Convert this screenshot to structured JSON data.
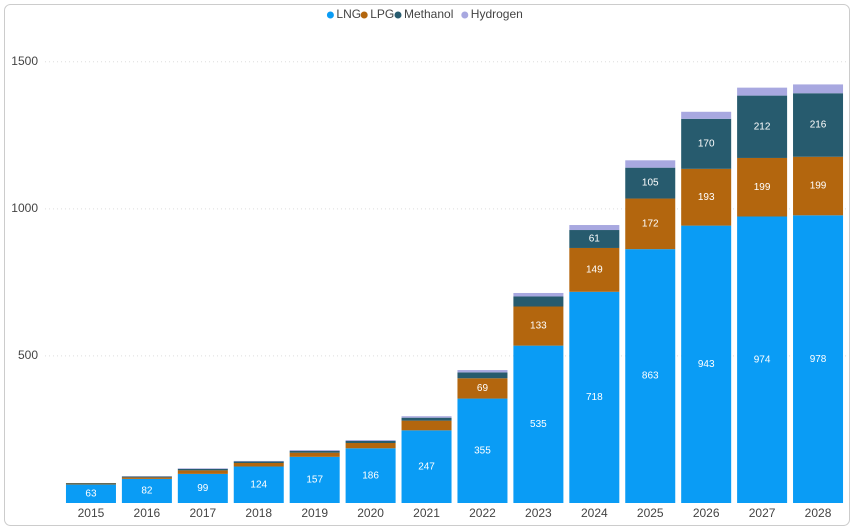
{
  "chart_data": {
    "type": "stacked-bar",
    "categories": [
      "2015",
      "2016",
      "2017",
      "2018",
      "2019",
      "2020",
      "2021",
      "2022",
      "2023",
      "2024",
      "2025",
      "2026",
      "2027",
      "2028"
    ],
    "series": [
      {
        "name": "LNG",
        "color": "#0a9cf5",
        "values": [
          63,
          82,
          99,
          124,
          157,
          186,
          247,
          355,
          535,
          718,
          863,
          943,
          974,
          978
        ]
      },
      {
        "name": "LPG",
        "color": "#b3660e",
        "values": [
          3,
          5,
          12,
          12,
          14,
          18,
          33,
          69,
          133,
          149,
          172,
          193,
          199,
          199
        ]
      },
      {
        "name": "Methanol",
        "color": "#275b6e",
        "values": [
          2,
          3,
          5,
          5,
          6,
          7,
          10,
          20,
          34,
          61,
          105,
          170,
          212,
          216
        ]
      },
      {
        "name": "Hydrogen",
        "color": "#a8a8e0",
        "values": [
          0,
          1,
          2,
          2,
          3,
          3,
          5,
          8,
          12,
          17,
          25,
          24,
          27,
          30
        ]
      }
    ],
    "ylim": [
      0,
      1625
    ],
    "yticks": [
      500,
      1000,
      1500
    ],
    "grid": true,
    "legend": "top"
  }
}
